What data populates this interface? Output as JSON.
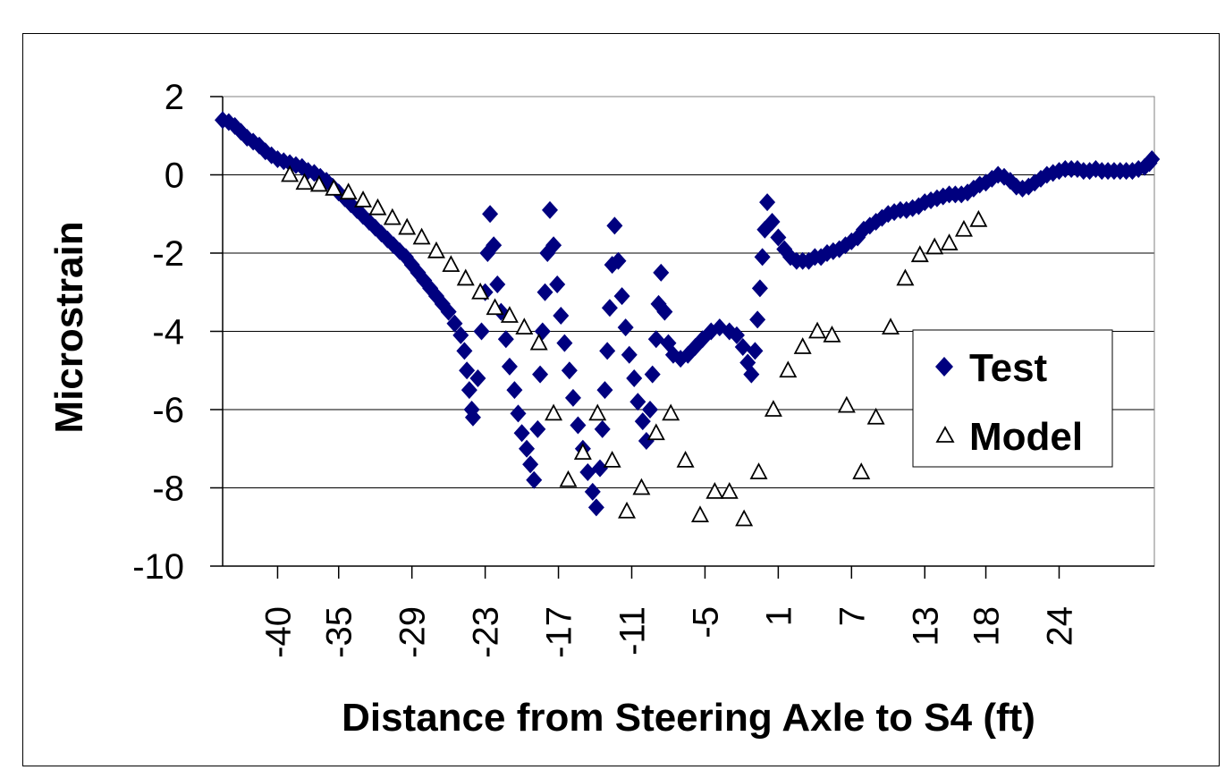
{
  "chart_data": {
    "type": "scatter",
    "title": "",
    "xlabel": "Distance from Steering Axle to S4 (ft)",
    "ylabel": "Microstrain",
    "xlim": [
      -44.5,
      31.8
    ],
    "ylim": [
      -10,
      2
    ],
    "yticks": [
      2,
      0,
      -2,
      -4,
      -6,
      -8,
      -10
    ],
    "ytick_labels": [
      "2",
      "0",
      "-2",
      "-4",
      "-6",
      "-8",
      "-10"
    ],
    "xticks": [
      -40,
      -35,
      -29,
      -23,
      -17,
      -11,
      -5,
      1,
      7,
      13,
      18,
      24
    ],
    "xtick_labels": [
      "-40",
      "-35",
      "-29",
      "-23",
      "-17",
      "-11",
      "-5",
      "1",
      "7",
      "13",
      "18",
      "24"
    ],
    "grid": "horizontal",
    "legend_position": "right",
    "colors": {
      "test": "#00007f",
      "model": "#000000"
    },
    "series": [
      {
        "name": "Test",
        "marker": "diamond",
        "points": [
          [
            -44.5,
            1.4
          ],
          [
            -44.0,
            1.35
          ],
          [
            -43.5,
            1.25
          ],
          [
            -43.0,
            1.1
          ],
          [
            -42.5,
            0.95
          ],
          [
            -42.0,
            0.85
          ],
          [
            -41.5,
            0.75
          ],
          [
            -41.0,
            0.6
          ],
          [
            -40.5,
            0.5
          ],
          [
            -40.0,
            0.4
          ],
          [
            -39.5,
            0.35
          ],
          [
            -39.0,
            0.3
          ],
          [
            -38.5,
            0.25
          ],
          [
            -38.0,
            0.2
          ],
          [
            -37.5,
            0.1
          ],
          [
            -37.0,
            0.05
          ],
          [
            -36.5,
            -0.05
          ],
          [
            -36.0,
            -0.15
          ],
          [
            -35.5,
            -0.3
          ],
          [
            -35.0,
            -0.45
          ],
          [
            -34.5,
            -0.6
          ],
          [
            -34.0,
            -0.75
          ],
          [
            -33.5,
            -0.9
          ],
          [
            -33.0,
            -1.05
          ],
          [
            -32.5,
            -1.2
          ],
          [
            -32.0,
            -1.35
          ],
          [
            -31.5,
            -1.5
          ],
          [
            -31.0,
            -1.65
          ],
          [
            -30.5,
            -1.8
          ],
          [
            -30.0,
            -1.95
          ],
          [
            -29.5,
            -2.1
          ],
          [
            -29.0,
            -2.3
          ],
          [
            -28.5,
            -2.5
          ],
          [
            -28.0,
            -2.7
          ],
          [
            -27.5,
            -2.9
          ],
          [
            -27.0,
            -3.1
          ],
          [
            -26.5,
            -3.3
          ],
          [
            -26.0,
            -3.5
          ],
          [
            -25.5,
            -3.8
          ],
          [
            -25.0,
            -4.1
          ],
          [
            -24.7,
            -4.5
          ],
          [
            -24.5,
            -5.0
          ],
          [
            -24.3,
            -5.5
          ],
          [
            -24.1,
            -6.0
          ],
          [
            -24.0,
            -6.2
          ],
          [
            -23.6,
            -5.2
          ],
          [
            -23.3,
            -4.0
          ],
          [
            -23.0,
            -3.0
          ],
          [
            -22.8,
            -2.0
          ],
          [
            -22.6,
            -1.0
          ],
          [
            -22.3,
            -1.8
          ],
          [
            -22.0,
            -2.8
          ],
          [
            -21.7,
            -3.5
          ],
          [
            -21.3,
            -4.2
          ],
          [
            -21.0,
            -4.9
          ],
          [
            -20.6,
            -5.5
          ],
          [
            -20.3,
            -6.1
          ],
          [
            -20.0,
            -6.6
          ],
          [
            -19.6,
            -7.0
          ],
          [
            -19.3,
            -7.4
          ],
          [
            -19.0,
            -7.8
          ],
          [
            -18.7,
            -6.5
          ],
          [
            -18.5,
            -5.1
          ],
          [
            -18.3,
            -4.0
          ],
          [
            -18.1,
            -3.0
          ],
          [
            -17.9,
            -2.0
          ],
          [
            -17.7,
            -0.9
          ],
          [
            -17.4,
            -1.8
          ],
          [
            -17.1,
            -2.8
          ],
          [
            -16.8,
            -3.6
          ],
          [
            -16.5,
            -4.3
          ],
          [
            -16.1,
            -5.0
          ],
          [
            -15.8,
            -5.7
          ],
          [
            -15.4,
            -6.4
          ],
          [
            -15.0,
            -7.0
          ],
          [
            -14.6,
            -7.6
          ],
          [
            -14.2,
            -8.1
          ],
          [
            -13.9,
            -8.5
          ],
          [
            -13.6,
            -7.5
          ],
          [
            -13.4,
            -6.5
          ],
          [
            -13.2,
            -5.5
          ],
          [
            -13.0,
            -4.5
          ],
          [
            -12.8,
            -3.4
          ],
          [
            -12.6,
            -2.3
          ],
          [
            -12.4,
            -1.3
          ],
          [
            -12.1,
            -2.2
          ],
          [
            -11.8,
            -3.1
          ],
          [
            -11.5,
            -3.9
          ],
          [
            -11.2,
            -4.6
          ],
          [
            -10.8,
            -5.2
          ],
          [
            -10.5,
            -5.8
          ],
          [
            -10.1,
            -6.3
          ],
          [
            -9.8,
            -6.8
          ],
          [
            -9.5,
            -6.0
          ],
          [
            -9.3,
            -5.1
          ],
          [
            -9.0,
            -4.2
          ],
          [
            -8.8,
            -3.3
          ],
          [
            -8.6,
            -2.5
          ],
          [
            -8.3,
            -3.5
          ],
          [
            -8.0,
            -4.3
          ],
          [
            -7.6,
            -4.6
          ],
          [
            -7.0,
            -4.7
          ],
          [
            -6.4,
            -4.6
          ],
          [
            -5.8,
            -4.4
          ],
          [
            -5.2,
            -4.2
          ],
          [
            -4.5,
            -4.0
          ],
          [
            -3.8,
            -3.9
          ],
          [
            -3.0,
            -4.0
          ],
          [
            -2.4,
            -4.1
          ],
          [
            -1.9,
            -4.4
          ],
          [
            -1.5,
            -4.8
          ],
          [
            -1.2,
            -5.1
          ],
          [
            -0.9,
            -4.5
          ],
          [
            -0.7,
            -3.7
          ],
          [
            -0.5,
            -2.9
          ],
          [
            -0.3,
            -2.1
          ],
          [
            -0.1,
            -1.4
          ],
          [
            0.1,
            -0.7
          ],
          [
            0.5,
            -1.2
          ],
          [
            1.0,
            -1.6
          ],
          [
            1.5,
            -1.9
          ],
          [
            2.0,
            -2.1
          ],
          [
            2.5,
            -2.2
          ],
          [
            3.0,
            -2.2
          ],
          [
            3.5,
            -2.2
          ],
          [
            4.0,
            -2.1
          ],
          [
            4.5,
            -2.1
          ],
          [
            5.0,
            -2.0
          ],
          [
            5.5,
            -1.95
          ],
          [
            6.0,
            -1.9
          ],
          [
            6.5,
            -1.8
          ],
          [
            7.0,
            -1.7
          ],
          [
            7.5,
            -1.6
          ],
          [
            8.0,
            -1.4
          ],
          [
            8.5,
            -1.3
          ],
          [
            9.0,
            -1.2
          ],
          [
            9.5,
            -1.1
          ],
          [
            10.0,
            -1.0
          ],
          [
            10.5,
            -0.95
          ],
          [
            11.0,
            -0.9
          ],
          [
            11.5,
            -0.9
          ],
          [
            12.0,
            -0.85
          ],
          [
            12.5,
            -0.8
          ],
          [
            13.0,
            -0.7
          ],
          [
            13.5,
            -0.65
          ],
          [
            14.0,
            -0.6
          ],
          [
            14.5,
            -0.55
          ],
          [
            15.0,
            -0.5
          ],
          [
            15.5,
            -0.5
          ],
          [
            16.0,
            -0.5
          ],
          [
            16.5,
            -0.45
          ],
          [
            17.0,
            -0.35
          ],
          [
            17.5,
            -0.25
          ],
          [
            18.0,
            -0.2
          ],
          [
            18.5,
            -0.1
          ],
          [
            19.0,
            0.0
          ],
          [
            19.5,
            -0.05
          ],
          [
            20.0,
            -0.15
          ],
          [
            20.5,
            -0.3
          ],
          [
            21.0,
            -0.35
          ],
          [
            21.5,
            -0.3
          ],
          [
            22.0,
            -0.2
          ],
          [
            22.5,
            -0.1
          ],
          [
            23.0,
            0.0
          ],
          [
            23.5,
            0.05
          ],
          [
            24.0,
            0.1
          ],
          [
            24.5,
            0.15
          ],
          [
            25.0,
            0.15
          ],
          [
            25.5,
            0.15
          ],
          [
            26.0,
            0.1
          ],
          [
            26.5,
            0.1
          ],
          [
            27.0,
            0.15
          ],
          [
            27.5,
            0.1
          ],
          [
            28.0,
            0.1
          ],
          [
            28.5,
            0.1
          ],
          [
            29.0,
            0.1
          ],
          [
            29.5,
            0.1
          ],
          [
            30.0,
            0.1
          ],
          [
            30.5,
            0.15
          ],
          [
            31.0,
            0.2
          ],
          [
            31.4,
            0.3
          ],
          [
            31.6,
            0.4
          ]
        ]
      },
      {
        "name": "Model",
        "marker": "triangle",
        "points": [
          [
            -39.0,
            0.0
          ],
          [
            -37.8,
            -0.2
          ],
          [
            -36.6,
            -0.25
          ],
          [
            -35.4,
            -0.35
          ],
          [
            -34.2,
            -0.45
          ],
          [
            -33.0,
            -0.65
          ],
          [
            -31.8,
            -0.85
          ],
          [
            -30.6,
            -1.1
          ],
          [
            -29.4,
            -1.35
          ],
          [
            -28.2,
            -1.6
          ],
          [
            -27.0,
            -1.95
          ],
          [
            -25.8,
            -2.3
          ],
          [
            -24.6,
            -2.65
          ],
          [
            -23.4,
            -3.0
          ],
          [
            -22.2,
            -3.4
          ],
          [
            -21.0,
            -3.6
          ],
          [
            -19.8,
            -3.9
          ],
          [
            -18.6,
            -4.3
          ],
          [
            -17.4,
            -6.1
          ],
          [
            -16.2,
            -7.8
          ],
          [
            -15.0,
            -7.1
          ],
          [
            -13.8,
            -6.1
          ],
          [
            -12.6,
            -7.3
          ],
          [
            -11.4,
            -8.6
          ],
          [
            -10.2,
            -8.0
          ],
          [
            -9.0,
            -6.6
          ],
          [
            -7.8,
            -6.1
          ],
          [
            -6.6,
            -7.3
          ],
          [
            -5.4,
            -8.7
          ],
          [
            -4.2,
            -8.1
          ],
          [
            -3.0,
            -8.1
          ],
          [
            -1.8,
            -8.8
          ],
          [
            -0.6,
            -7.6
          ],
          [
            0.6,
            -6.0
          ],
          [
            1.8,
            -5.0
          ],
          [
            3.0,
            -4.4
          ],
          [
            4.2,
            -4.0
          ],
          [
            5.4,
            -4.1
          ],
          [
            6.6,
            -5.9
          ],
          [
            7.8,
            -7.6
          ],
          [
            9.0,
            -6.2
          ],
          [
            10.2,
            -3.9
          ],
          [
            11.4,
            -2.65
          ],
          [
            12.6,
            -2.05
          ],
          [
            13.8,
            -1.85
          ],
          [
            15.0,
            -1.75
          ],
          [
            16.2,
            -1.4
          ],
          [
            17.4,
            -1.15
          ]
        ]
      }
    ]
  }
}
